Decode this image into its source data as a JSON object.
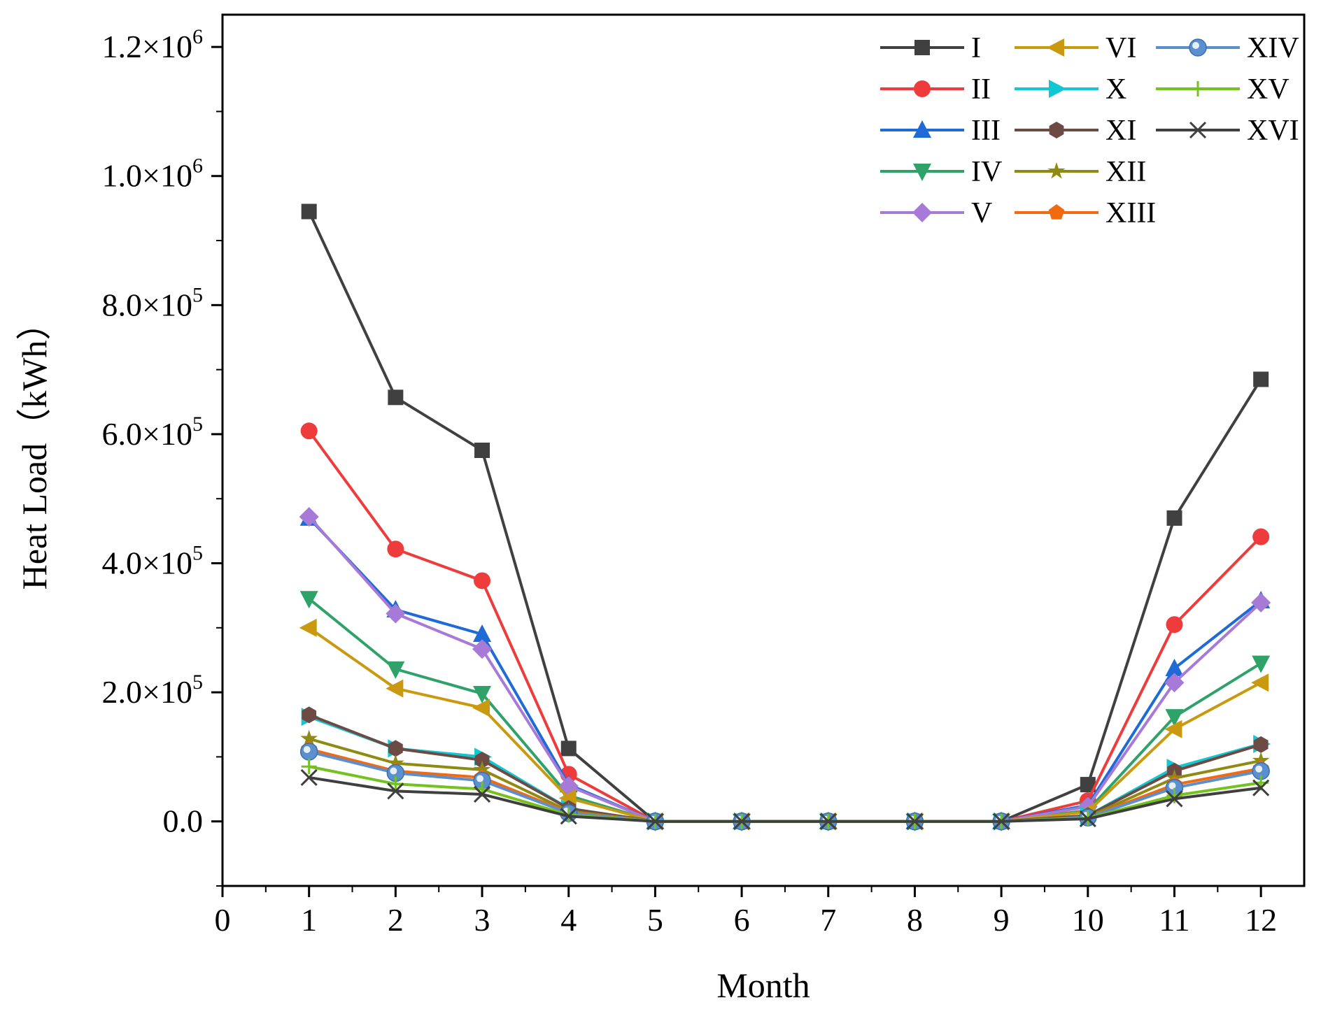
{
  "chart_data": {
    "type": "line",
    "xlabel": "Month",
    "ylabel": "Heat Load（kWh）",
    "xlim": [
      0,
      12.5
    ],
    "ylim": [
      -100000,
      1250000
    ],
    "x_ticks": [
      0,
      1,
      2,
      3,
      4,
      5,
      6,
      7,
      8,
      9,
      10,
      11,
      12
    ],
    "y_ticks": [
      {
        "value": 0,
        "mantissa": "0.0",
        "exp": ""
      },
      {
        "value": 200000,
        "mantissa": "2.0",
        "exp": "5"
      },
      {
        "value": 400000,
        "mantissa": "4.0",
        "exp": "5"
      },
      {
        "value": 600000,
        "mantissa": "6.0",
        "exp": "5"
      },
      {
        "value": 800000,
        "mantissa": "8.0",
        "exp": "5"
      },
      {
        "value": 1000000,
        "mantissa": "1.0",
        "exp": "6"
      },
      {
        "value": 1200000,
        "mantissa": "1.2",
        "exp": "6"
      }
    ],
    "grid": false,
    "legend_position": "top-right",
    "x": [
      1,
      2,
      3,
      4,
      5,
      6,
      7,
      8,
      9,
      10,
      11,
      12
    ],
    "series": [
      {
        "name": "I",
        "color": "#404040",
        "marker": "square",
        "values": [
          945000,
          657000,
          575000,
          113000,
          0,
          0,
          0,
          0,
          0,
          57000,
          470000,
          685000
        ]
      },
      {
        "name": "II",
        "color": "#ee3b3b",
        "marker": "circle",
        "values": [
          605000,
          422000,
          373000,
          73000,
          0,
          0,
          0,
          0,
          0,
          32000,
          305000,
          441000
        ]
      },
      {
        "name": "III",
        "color": "#1e6ad6",
        "marker": "triangle-up",
        "values": [
          470000,
          328000,
          290000,
          57000,
          0,
          0,
          0,
          0,
          0,
          25000,
          237000,
          342000
        ]
      },
      {
        "name": "IV",
        "color": "#2fa26a",
        "marker": "triangle-down",
        "values": [
          345000,
          236000,
          198000,
          40000,
          0,
          0,
          0,
          0,
          0,
          17000,
          162000,
          245000
        ]
      },
      {
        "name": "V",
        "color": "#a77ad8",
        "marker": "diamond",
        "values": [
          472000,
          322000,
          267000,
          55000,
          0,
          0,
          0,
          0,
          0,
          23000,
          215000,
          339000
        ]
      },
      {
        "name": "VI",
        "color": "#c99a10",
        "marker": "triangle-left",
        "values": [
          300000,
          206000,
          176000,
          36000,
          0,
          0,
          0,
          0,
          0,
          15000,
          143000,
          215000
        ]
      },
      {
        "name": "X",
        "color": "#12c6d2",
        "marker": "triangle-right",
        "values": [
          162000,
          113000,
          100000,
          20000,
          0,
          0,
          0,
          0,
          0,
          9000,
          83000,
          120000
        ]
      },
      {
        "name": "XI",
        "color": "#6e4a44",
        "marker": "hexagon",
        "values": [
          165000,
          113000,
          95000,
          20000,
          0,
          0,
          0,
          0,
          0,
          9000,
          78000,
          119000
        ]
      },
      {
        "name": "XII",
        "color": "#8f8a12",
        "marker": "star",
        "values": [
          128000,
          90000,
          80000,
          16000,
          0,
          0,
          0,
          0,
          0,
          7000,
          67000,
          94000
        ]
      },
      {
        "name": "XIII",
        "color": "#f26a10",
        "marker": "pentagon",
        "values": [
          112000,
          78000,
          68000,
          14000,
          0,
          0,
          0,
          0,
          0,
          6000,
          57000,
          82000
        ]
      },
      {
        "name": "XIV",
        "color": "#5a8fd0",
        "marker": "ball",
        "values": [
          108000,
          75000,
          63000,
          13000,
          0,
          0,
          0,
          0,
          0,
          6000,
          52000,
          78000
        ]
      },
      {
        "name": "XV",
        "color": "#74c21e",
        "marker": "plus",
        "values": [
          85000,
          58000,
          50000,
          10000,
          0,
          0,
          0,
          0,
          0,
          5000,
          40000,
          60000
        ]
      },
      {
        "name": "XVI",
        "color": "#3f3f3f",
        "marker": "x",
        "values": [
          68000,
          47000,
          42000,
          8000,
          0,
          0,
          0,
          0,
          0,
          4000,
          35000,
          52000
        ]
      }
    ]
  }
}
